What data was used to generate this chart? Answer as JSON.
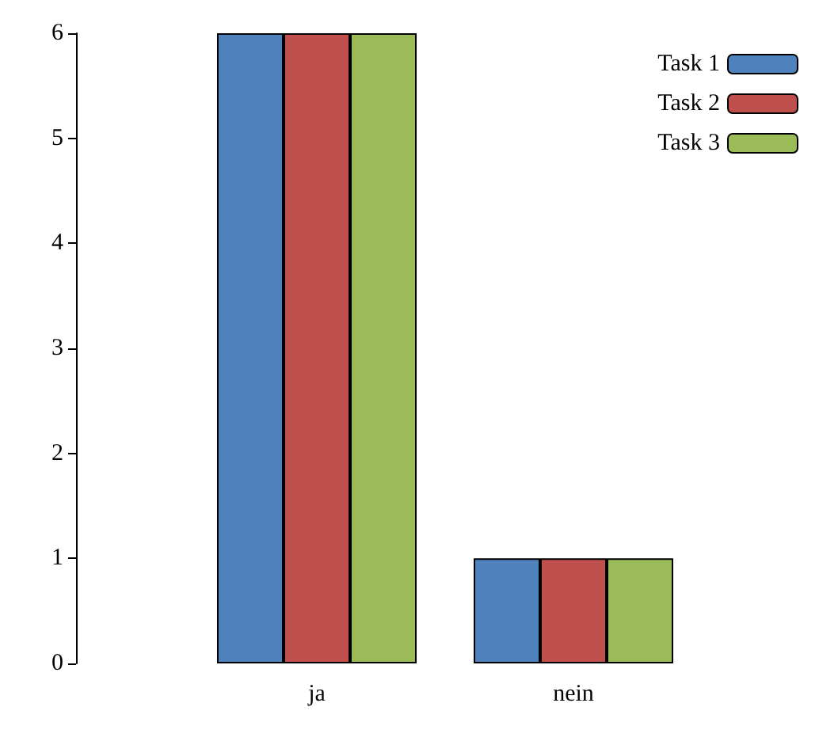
{
  "chart_data": {
    "type": "bar",
    "categories": [
      "ja",
      "nein"
    ],
    "series": [
      {
        "name": "Task 1",
        "color": "#4f81bd",
        "values": [
          6,
          1
        ]
      },
      {
        "name": "Task 2",
        "color": "#c0504d",
        "values": [
          6,
          1
        ]
      },
      {
        "name": "Task 3",
        "color": "#9bbb59",
        "values": [
          6,
          1
        ]
      }
    ],
    "ylim": [
      0,
      6
    ],
    "yticks": [
      0,
      1,
      2,
      3,
      4,
      5,
      6
    ],
    "grid": false,
    "legend": "top right"
  }
}
